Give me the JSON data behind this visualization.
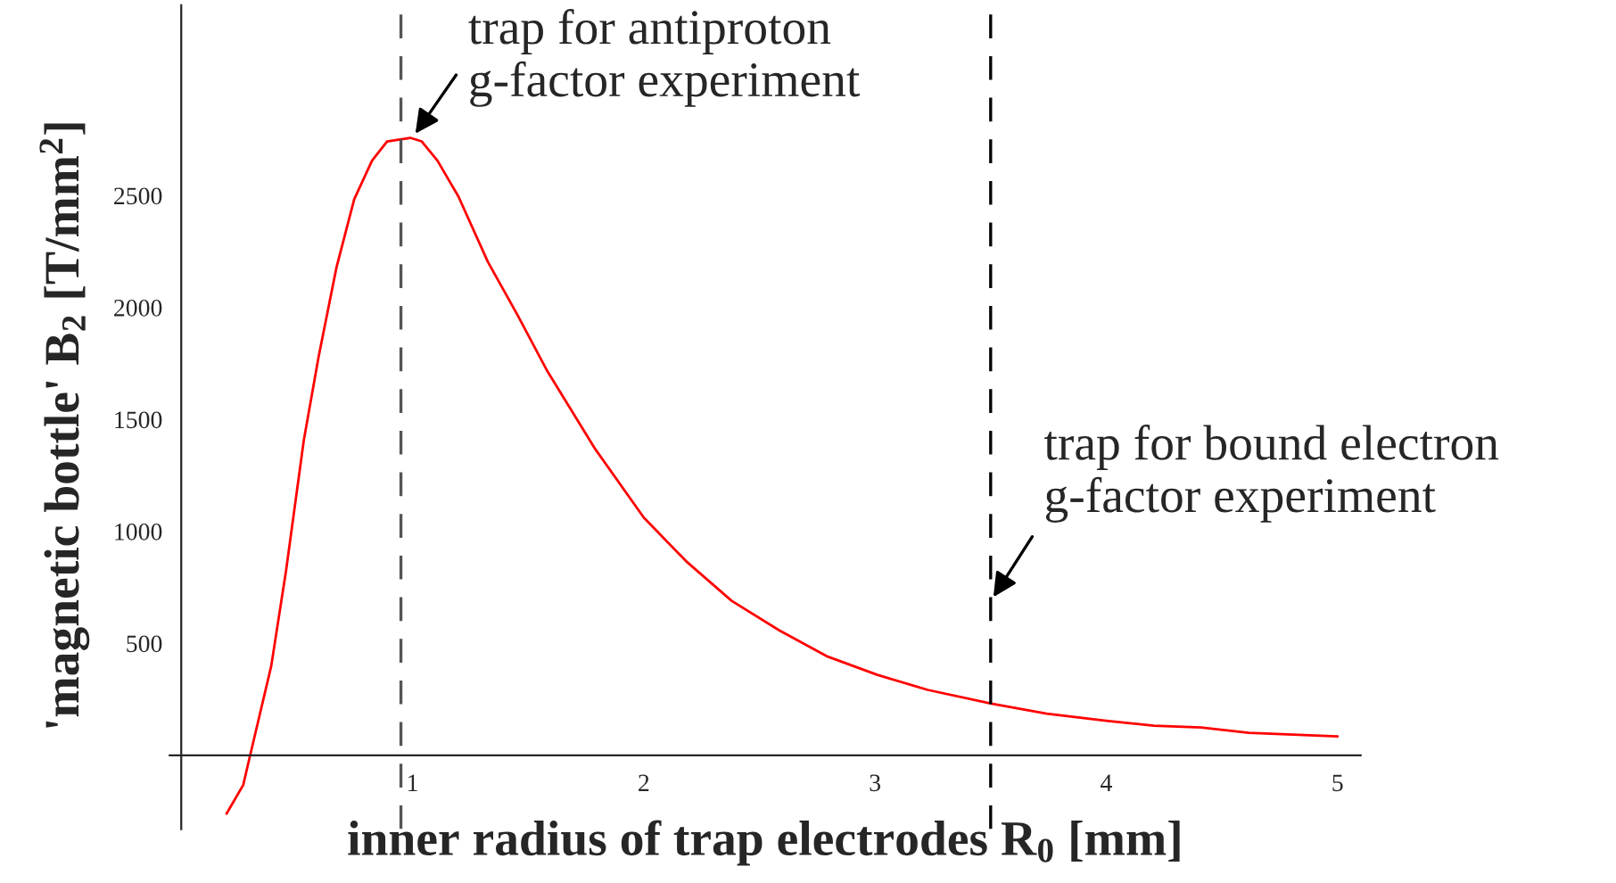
{
  "chart_data": {
    "type": "line",
    "xlabel": "inner radius of trap electrodes R$_{0}$ [mm]",
    "ylabel": "'magnetic bottle' B$_{2}$ [T/mm$^{2}$]",
    "x": [
      0.196,
      0.268,
      0.298,
      0.389,
      0.453,
      0.53,
      0.594,
      0.671,
      0.748,
      0.825,
      0.89,
      0.99,
      1.04,
      1.108,
      1.198,
      1.326,
      1.455,
      1.584,
      1.79,
      2.0,
      2.187,
      2.38,
      2.586,
      2.79,
      3.01,
      3.228,
      3.503,
      3.742,
      4.0,
      4.205,
      4.41,
      4.616,
      5.0
    ],
    "series": [
      {
        "color": "#ff0000",
        "values": [
          -261,
          -133,
          0,
          398,
          823,
          1407,
          1780,
          2178,
          2484,
          2656,
          2742,
          2758,
          2742,
          2656,
          2497,
          2204,
          1965,
          1714,
          1368,
          1062,
          863,
          690,
          558,
          443,
          359,
          292,
          231,
          186,
          154,
          132,
          124,
          100,
          84
        ]
      }
    ],
    "xlim": [
      -0.05,
      5.1
    ],
    "ylim": [
      -330,
      3350
    ],
    "xticks": [
      1,
      2,
      3,
      4,
      5
    ],
    "yticks": [
      500,
      1000,
      1500,
      2000,
      2500
    ],
    "ref_lines": [
      {
        "axis": "x",
        "value": 0.95,
        "color": "#555555",
        "line_style": "dashed"
      },
      {
        "axis": "x",
        "value": 3.5,
        "color": "#000000",
        "line_style": "dashed"
      }
    ],
    "annotations": [
      {
        "text": "trap for antiproton\ng-factor experiment",
        "x": 1.0,
        "y": 2758
      },
      {
        "text": "trap for bound electron\ng-factor experiment",
        "x": 3.5,
        "y": 688
      }
    ]
  }
}
